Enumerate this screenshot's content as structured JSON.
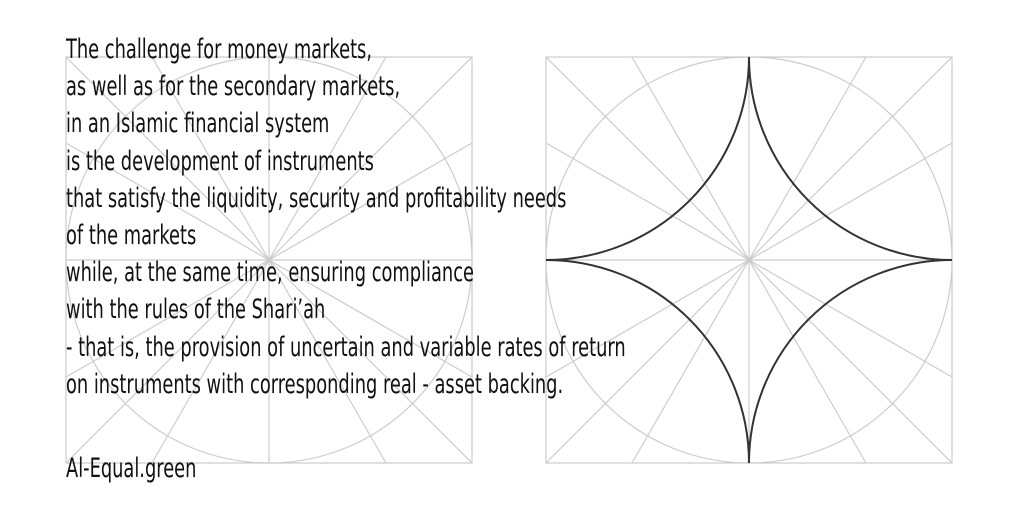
{
  "quote": {
    "lines": [
      "The challenge for money markets,",
      "as well as for the secondary markets,",
      "in an Islamic financial system",
      "is the development of instruments",
      "that satisfy the liquidity, security and profitability needs",
      "of the markets",
      "while, at the same time, ensuring compliance",
      "with the rules of the Shari’ah",
      "- that is, the provision of uncertain and variable rates of return",
      "on instruments with corresponding real - asset backing."
    ]
  },
  "signature": "Al-Equal.green",
  "colors": {
    "text": "#111111",
    "construction_lines": "#cccccc",
    "star_outline": "#333333"
  }
}
